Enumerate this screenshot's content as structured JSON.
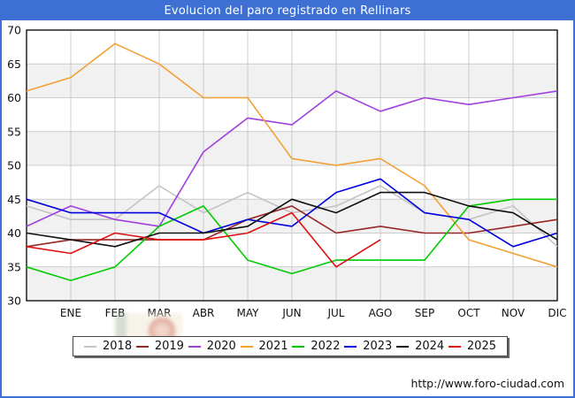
{
  "title": "Evolucion del paro registrado en Rellinars",
  "footer": {
    "url_text": "http://www.foro-ciudad.com"
  },
  "colors": {
    "frame_blue": "#3e6fd2",
    "grid": "#cccccc",
    "band_gray": "#f1f1f1",
    "axis_black": "#000000",
    "label_black": "#111111"
  },
  "chart_data": {
    "type": "line",
    "title": "Evolucion del paro registrado en Rellinars",
    "xlabel": "",
    "ylabel": "",
    "ylim": [
      30,
      70
    ],
    "y_ticks": [
      70,
      65,
      60,
      55,
      50,
      45,
      40,
      35,
      30
    ],
    "grid": true,
    "legend_position": "bottom",
    "categories": [
      "ENE",
      "FEB",
      "MAR",
      "ABR",
      "MAY",
      "JUN",
      "JUL",
      "AGO",
      "SEP",
      "OCT",
      "NOV",
      "DIC"
    ],
    "first_point_unlabeled_at_left_axis": true,
    "series": [
      {
        "name": "2018",
        "color": "#c4c4c4",
        "values": [
          44,
          42,
          42,
          47,
          43,
          46,
          43,
          44,
          47,
          43,
          42,
          44,
          38
        ]
      },
      {
        "name": "2019",
        "color": "#992626",
        "values": [
          38,
          39,
          39,
          39,
          39,
          42,
          44,
          40,
          41,
          40,
          40,
          41,
          42
        ]
      },
      {
        "name": "2020",
        "color": "#a040e0",
        "values": [
          41,
          44,
          42,
          41,
          52,
          57,
          56,
          61,
          58,
          60,
          59,
          60,
          61
        ]
      },
      {
        "name": "2021",
        "color": "#f2a033",
        "values": [
          61,
          63,
          68,
          65,
          60,
          60,
          51,
          50,
          51,
          47,
          39,
          37,
          35
        ]
      },
      {
        "name": "2022",
        "color": "#00cc00",
        "values": [
          35,
          33,
          35,
          41,
          44,
          36,
          34,
          36,
          36,
          36,
          44,
          45,
          45
        ]
      },
      {
        "name": "2023",
        "color": "#0000e0",
        "values": [
          45,
          43,
          43,
          43,
          40,
          42,
          41,
          46,
          48,
          43,
          42,
          38,
          40
        ]
      },
      {
        "name": "2024",
        "color": "#101010",
        "values": [
          40,
          39,
          38,
          40,
          40,
          41,
          45,
          43,
          46,
          46,
          44,
          43,
          39
        ]
      },
      {
        "name": "2025",
        "color": "#e01010",
        "values": [
          38,
          37,
          40,
          39,
          39,
          40,
          43,
          35,
          39
        ]
      }
    ]
  }
}
